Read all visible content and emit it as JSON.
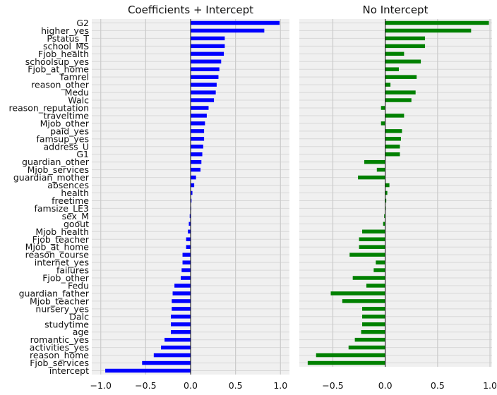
{
  "chart_data": [
    {
      "type": "bar",
      "orientation": "horizontal",
      "title": "Coefficients + Intercept",
      "color": "#0000ff",
      "background": "#f0f0f0",
      "grid": true,
      "xlim": [
        -1.1,
        1.1
      ],
      "xticks": [
        -1.0,
        -0.5,
        0.0,
        0.5,
        1.0
      ],
      "xtick_labels": [
        "−1.0",
        "−0.5",
        "0.0",
        "0.5",
        "1.0"
      ],
      "categories": [
        "G2",
        "higher_yes",
        "Pstatus_T",
        "school_MS",
        "Fjob_health",
        "schoolsup_yes",
        "Fjob_at_home",
        "famrel",
        "reason_other",
        "Medu",
        "Walc",
        "reason_reputation",
        "traveltime",
        "Mjob_other",
        "paid_yes",
        "famsup_yes",
        "address_U",
        "G1",
        "guardian_other",
        "Mjob_services",
        "guardian_mother",
        "absences",
        "health",
        "freetime",
        "famsize_LE3",
        "sex_M",
        "goout",
        "Mjob_health",
        "Fjob_teacher",
        "Mjob_at_home",
        "reason_course",
        "internet_yes",
        "failures",
        "Fjob_other",
        "Fedu",
        "guardian_father",
        "Mjob_teacher",
        "nursery_yes",
        "Dalc",
        "studytime",
        "age",
        "romantic_yes",
        "activities_yes",
        "reason_home",
        "Fjob_services",
        "intercept"
      ],
      "values": [
        0.99,
        0.82,
        0.38,
        0.38,
        0.37,
        0.34,
        0.32,
        0.31,
        0.29,
        0.28,
        0.26,
        0.2,
        0.18,
        0.16,
        0.15,
        0.15,
        0.14,
        0.13,
        0.12,
        0.11,
        0.06,
        0.04,
        0.02,
        0.01,
        0.0,
        -0.01,
        -0.02,
        -0.03,
        -0.05,
        -0.05,
        -0.09,
        -0.09,
        -0.1,
        -0.11,
        -0.18,
        -0.2,
        -0.21,
        -0.21,
        -0.22,
        -0.22,
        -0.22,
        -0.29,
        -0.33,
        -0.41,
        -0.54,
        -0.95
      ]
    },
    {
      "type": "bar",
      "orientation": "horizontal",
      "title": "No Intercept",
      "color": "#008000",
      "background": "#f0f0f0",
      "grid": true,
      "xlim": [
        -0.82,
        1.02
      ],
      "xticks": [
        -0.5,
        0.0,
        0.5,
        1.0
      ],
      "xtick_labels": [
        "−0.5",
        "0.0",
        "0.5",
        "1.0"
      ],
      "categories": [
        "G2",
        "higher_yes",
        "Pstatus_T",
        "school_MS",
        "Fjob_health",
        "schoolsup_yes",
        "Fjob_at_home",
        "famrel",
        "reason_other",
        "Medu",
        "Walc",
        "reason_reputation",
        "traveltime",
        "Mjob_other",
        "paid_yes",
        "famsup_yes",
        "address_U",
        "G1",
        "guardian_other",
        "Mjob_services",
        "guardian_mother",
        "absences",
        "health",
        "freetime",
        "famsize_LE3",
        "sex_M",
        "goout",
        "Mjob_health",
        "Fjob_teacher",
        "Mjob_at_home",
        "reason_course",
        "internet_yes",
        "failures",
        "Fjob_other",
        "Fedu",
        "guardian_father",
        "Mjob_teacher",
        "nursery_yes",
        "Dalc",
        "studytime",
        "age",
        "romantic_yes",
        "activities_yes",
        "reason_home",
        "Fjob_services"
      ],
      "values": [
        0.99,
        0.82,
        0.38,
        0.38,
        0.18,
        0.34,
        0.13,
        0.3,
        0.05,
        0.29,
        0.25,
        -0.04,
        0.18,
        -0.04,
        0.16,
        0.15,
        0.14,
        0.14,
        -0.2,
        -0.08,
        -0.26,
        0.04,
        0.02,
        0.01,
        0.0,
        -0.01,
        -0.02,
        -0.22,
        -0.25,
        -0.25,
        -0.34,
        -0.09,
        -0.11,
        -0.31,
        -0.18,
        -0.52,
        -0.41,
        -0.22,
        -0.22,
        -0.22,
        -0.23,
        -0.29,
        -0.35,
        -0.66,
        -0.74
      ]
    }
  ]
}
